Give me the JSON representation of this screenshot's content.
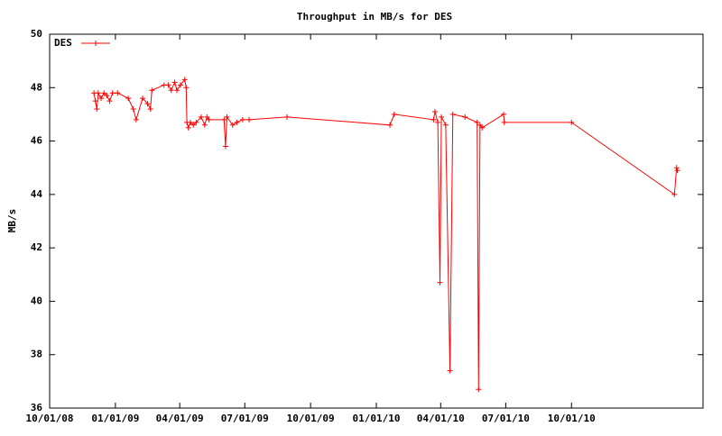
{
  "chart_data": {
    "type": "line",
    "title": "Throughput in MB/s for DES",
    "y_label": "MB/s",
    "x": [
      "2008-12-02",
      "2008-12-04",
      "2008-12-06",
      "2008-12-08",
      "2008-12-12",
      "2008-12-16",
      "2008-12-20",
      "2008-12-24",
      "2008-12-28",
      "2009-01-04",
      "2009-01-19",
      "2009-01-26",
      "2009-01-30",
      "2009-02-08",
      "2009-02-15",
      "2009-02-19",
      "2009-02-21",
      "2009-03-10",
      "2009-03-16",
      "2009-03-20",
      "2009-03-25",
      "2009-03-28",
      "2009-04-02",
      "2009-04-08",
      "2009-04-10",
      "2009-04-11",
      "2009-04-13",
      "2009-04-16",
      "2009-04-20",
      "2009-04-24",
      "2009-05-01",
      "2009-05-06",
      "2009-05-09",
      "2009-05-12",
      "2009-06-02",
      "2009-06-04",
      "2009-06-06",
      "2009-06-14",
      "2009-06-20",
      "2009-06-28",
      "2009-07-07",
      "2009-08-29",
      "2010-01-20",
      "2010-01-26",
      "2010-03-22",
      "2010-03-24",
      "2010-03-28",
      "2010-03-31",
      "2010-04-02",
      "2010-04-08",
      "2010-04-14",
      "2010-04-18",
      "2010-05-05",
      "2010-05-22",
      "2010-05-24",
      "2010-05-26",
      "2010-05-29",
      "2010-06-28",
      "2010-06-29",
      "2010-10-01",
      "2011-02-22",
      "2011-02-25",
      "2011-02-26"
    ],
    "series": [
      {
        "name": "DES",
        "color": "#ff0000",
        "values": [
          47.8,
          47.5,
          47.2,
          47.8,
          47.6,
          47.8,
          47.7,
          47.5,
          47.8,
          47.8,
          47.6,
          47.2,
          46.8,
          47.6,
          47.4,
          47.2,
          47.9,
          48.1,
          48.1,
          47.9,
          48.2,
          47.9,
          48.1,
          48.3,
          48.0,
          46.7,
          46.5,
          46.7,
          46.6,
          46.7,
          46.9,
          46.6,
          46.9,
          46.8,
          46.8,
          45.8,
          46.9,
          46.6,
          46.7,
          46.8,
          46.8,
          46.9,
          46.6,
          47.0,
          46.8,
          47.1,
          46.7,
          40.7,
          46.9,
          46.6,
          37.4,
          47.0,
          46.9,
          46.7,
          36.7,
          46.6,
          46.5,
          47.0,
          46.7,
          46.7,
          44.0,
          45.0,
          44.9
        ]
      }
    ],
    "xlim": [
      "2008-10-01",
      "2011-04-03"
    ],
    "xticks": [
      {
        "value": "2008-10-01",
        "label": "10/01/08"
      },
      {
        "value": "2009-01-01",
        "label": "01/01/09"
      },
      {
        "value": "2009-04-01",
        "label": "04/01/09"
      },
      {
        "value": "2009-07-01",
        "label": "07/01/09"
      },
      {
        "value": "2009-10-01",
        "label": "10/01/09"
      },
      {
        "value": "2010-01-01",
        "label": "01/01/10"
      },
      {
        "value": "2010-04-01",
        "label": "04/01/10"
      },
      {
        "value": "2010-07-01",
        "label": "07/01/10"
      },
      {
        "value": "2010-10-01",
        "label": "10/01/10"
      }
    ],
    "ylim": [
      36,
      50
    ],
    "yticks": [
      36,
      38,
      40,
      42,
      44,
      46,
      48,
      50
    ],
    "grid": false,
    "legend": "top-left"
  }
}
